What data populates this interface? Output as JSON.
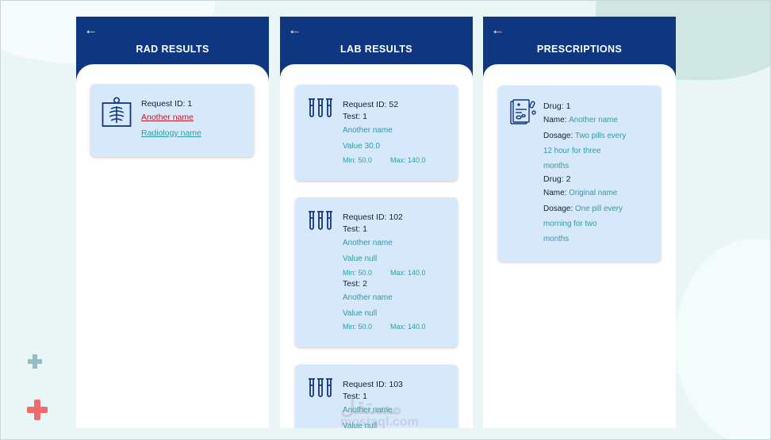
{
  "panels": {
    "rad": {
      "back": "←",
      "title": "RAD RESULTS",
      "card": {
        "request": "Request ID: 1",
        "name_link": "Another name",
        "rad_link": "Radiology name"
      }
    },
    "lab": {
      "back": "←",
      "title": "LAB RESULTS",
      "cards": [
        {
          "request": "Request ID: 52",
          "tests": [
            {
              "test": "Test: 1",
              "name": "Another name",
              "value": "Value 30.0",
              "min": "Min: 50.0",
              "max": "Max: 140.0"
            }
          ]
        },
        {
          "request": "Request ID: 102",
          "tests": [
            {
              "test": "Test: 1",
              "name": "Another name",
              "value": "Value null",
              "min": "Min: 50.0",
              "max": "Max: 140.0"
            },
            {
              "test": "Test: 2",
              "name": "Another name",
              "value": "Value null",
              "min": "Min: 50.0",
              "max": "Max: 140.0"
            }
          ]
        },
        {
          "request": "Request ID: 103",
          "tests": [
            {
              "test": "Test: 1",
              "name": "Another name",
              "value": "Value null"
            }
          ]
        }
      ]
    },
    "rx": {
      "back": "←",
      "title": "PRESCRIPTIONS",
      "drugs": [
        {
          "drug": "Drug: 1",
          "name_label": "Name:",
          "name": "Another name",
          "dosage_label": "Dosage:",
          "dosage_l1": "Two pills every",
          "dosage_l2": "12 hour for three",
          "dosage_l3": "months"
        },
        {
          "drug": "Drug: 2",
          "name_label": "Name:",
          "name": "Original name",
          "dosage_label": "Dosage:",
          "dosage_l1": "One pill every",
          "dosage_l2": "morning for two",
          "dosage_l3": "months"
        }
      ]
    }
  },
  "watermark": {
    "line1": "مستقل",
    "line2": "mostaql.com"
  },
  "colors": {
    "header": "#0f3680",
    "card": "#d8e8fb",
    "teal": "#2f9aa3",
    "red_link": "#b81d2b",
    "plus_red": "#ef6b6b",
    "plus_teal": "#93bcc4"
  }
}
